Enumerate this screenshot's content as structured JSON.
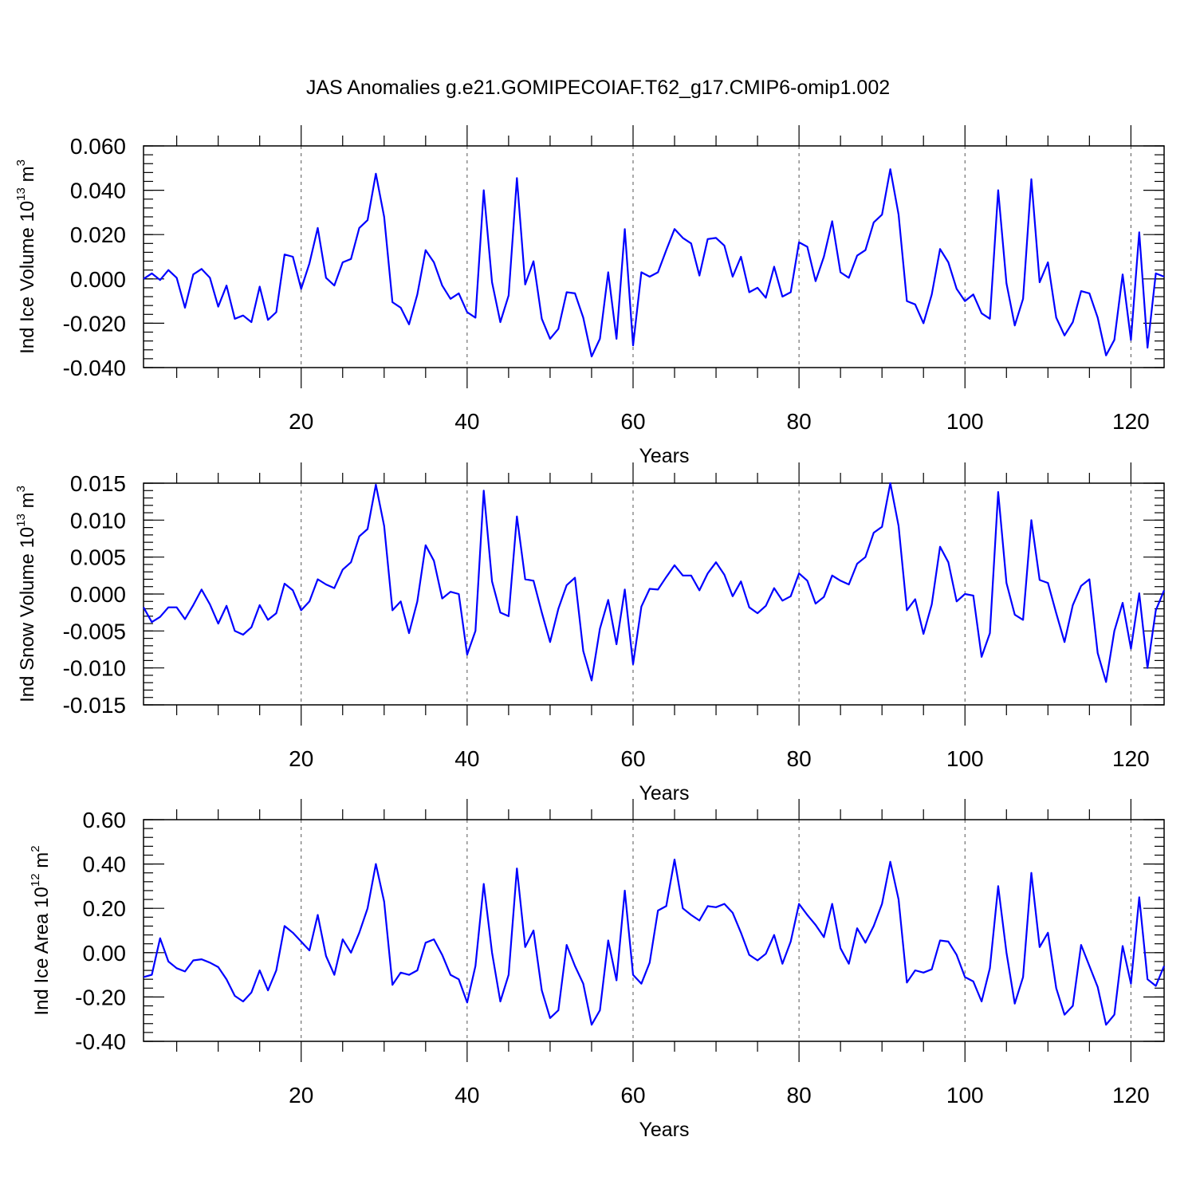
{
  "title": "JAS Anomalies g.e21.GOMIPECOIAF.T62_g17.CMIP6-omip1.002",
  "chart_data": [
    {
      "type": "line",
      "ylabel_main": "Ind Ice Volume 10",
      "ylabel_sup": "13",
      "ylabel_unit": " m",
      "ylabel_unit_sup": "3",
      "xlabel": "Years",
      "xlim": [
        1,
        124
      ],
      "ylim": [
        -0.04,
        0.06
      ],
      "yticks": [
        -0.04,
        -0.02,
        0.0,
        0.02,
        0.04,
        0.06
      ],
      "yticklabels": [
        "-0.040",
        "-0.020",
        "0.000",
        "0.020",
        "0.040",
        "0.060"
      ],
      "xticks": [
        20,
        40,
        60,
        80,
        100,
        120
      ],
      "xticklabels": [
        "20",
        "40",
        "60",
        "80",
        "100",
        "120"
      ],
      "grid": "vertical dashed at x ticks",
      "series": [
        {
          "color": "#0000ff",
          "values": [
            0.0,
            0.0025,
            -0.0005,
            0.004,
            0.0005,
            -0.013,
            0.002,
            0.0045,
            0.0005,
            -0.0125,
            -0.003,
            -0.018,
            -0.0165,
            -0.0195,
            -0.0035,
            -0.0185,
            -0.015,
            0.011,
            0.01,
            -0.0045,
            0.007,
            0.023,
            0.0005,
            -0.003,
            0.0075,
            0.009,
            0.023,
            0.0265,
            0.0475,
            0.028,
            -0.0105,
            -0.013,
            -0.0205,
            -0.007,
            0.013,
            0.0075,
            -0.003,
            -0.009,
            -0.0065,
            -0.015,
            -0.0175,
            0.04,
            -0.0015,
            -0.0195,
            -0.0075,
            0.0455,
            -0.0025,
            0.008,
            -0.018,
            -0.027,
            -0.0225,
            -0.006,
            -0.0065,
            -0.0175,
            -0.035,
            -0.027,
            0.003,
            -0.027,
            0.0225,
            -0.03,
            0.003,
            0.001,
            0.003,
            0.013,
            0.0225,
            0.0185,
            0.016,
            0.0015,
            0.018,
            0.0185,
            0.015,
            0.001,
            0.01,
            -0.006,
            -0.004,
            -0.0085,
            0.0055,
            -0.008,
            -0.006,
            0.0165,
            0.0145,
            -0.001,
            0.01,
            0.026,
            0.003,
            0.0005,
            0.0105,
            0.013,
            0.0255,
            0.029,
            0.0495,
            0.029,
            -0.01,
            -0.0115,
            -0.02,
            -0.007,
            0.0135,
            0.0075,
            -0.0045,
            -0.01,
            -0.007,
            -0.0155,
            -0.018,
            0.04,
            -0.002,
            -0.021,
            -0.009,
            0.045,
            -0.0015,
            0.0075,
            -0.0175,
            -0.0255,
            -0.0195,
            -0.0055,
            -0.0065,
            -0.0175,
            -0.0345,
            -0.0275,
            0.002,
            -0.0275,
            0.021,
            -0.031,
            0.0025,
            0.001
          ]
        }
      ]
    },
    {
      "type": "line",
      "ylabel_main": "Ind Snow Volume 10",
      "ylabel_sup": "13",
      "ylabel_unit": " m",
      "ylabel_unit_sup": "3",
      "xlabel": "Years",
      "xlim": [
        1,
        124
      ],
      "ylim": [
        -0.015,
        0.015
      ],
      "yticks": [
        -0.015,
        -0.01,
        -0.005,
        0.0,
        0.005,
        0.01,
        0.015
      ],
      "yticklabels": [
        "-0.015",
        "-0.010",
        "-0.005",
        "0.000",
        "0.005",
        "0.010",
        "0.015"
      ],
      "xticks": [
        20,
        40,
        60,
        80,
        100,
        120
      ],
      "xticklabels": [
        "20",
        "40",
        "60",
        "80",
        "100",
        "120"
      ],
      "grid": "vertical dashed at x ticks",
      "series": [
        {
          "color": "#0000ff",
          "values": [
            -0.0018,
            -0.0038,
            -0.0031,
            -0.0018,
            -0.0018,
            -0.0034,
            -0.0015,
            0.0006,
            -0.0014,
            -0.004,
            -0.0016,
            -0.005,
            -0.0055,
            -0.0045,
            -0.0015,
            -0.0035,
            -0.0026,
            0.0014,
            0.0005,
            -0.0022,
            -0.001,
            0.002,
            0.0013,
            0.0008,
            0.0033,
            0.0043,
            0.0078,
            0.0088,
            0.0148,
            0.0092,
            -0.0022,
            -0.001,
            -0.0053,
            -0.001,
            0.0066,
            0.0045,
            -0.0006,
            0.0003,
            0.0,
            -0.0082,
            -0.005,
            0.014,
            0.0017,
            -0.0025,
            -0.003,
            0.0105,
            0.002,
            0.0018,
            -0.0025,
            -0.0065,
            -0.002,
            0.0012,
            0.0022,
            -0.0077,
            -0.0117,
            -0.0047,
            -0.0008,
            -0.0068,
            0.0006,
            -0.0095,
            -0.0017,
            0.0007,
            0.0006,
            0.0023,
            0.0039,
            0.0025,
            0.0025,
            0.0005,
            0.0028,
            0.0043,
            0.0026,
            -0.0003,
            0.0017,
            -0.0018,
            -0.0026,
            -0.0016,
            0.0008,
            -0.0009,
            -0.0003,
            0.0028,
            0.0018,
            -0.0013,
            -0.0004,
            0.0025,
            0.0018,
            0.0013,
            0.0041,
            0.005,
            0.0083,
            0.0091,
            0.015,
            0.0092,
            -0.0022,
            -0.0007,
            -0.0054,
            -0.0014,
            0.0064,
            0.0043,
            -0.001,
            0.0,
            -0.0002,
            -0.0085,
            -0.0053,
            0.0138,
            0.0015,
            -0.0028,
            -0.0035,
            0.01,
            0.0019,
            0.0015,
            -0.0026,
            -0.0065,
            -0.0015,
            0.0011,
            0.002,
            -0.008,
            -0.0119,
            -0.005,
            -0.0012,
            -0.0074,
            0.0001,
            -0.01,
            -0.0022,
            0.0005
          ]
        }
      ]
    },
    {
      "type": "line",
      "ylabel_main": "Ind Ice Area 10",
      "ylabel_sup": "12",
      "ylabel_unit": " m",
      "ylabel_unit_sup": "2",
      "xlabel": "Years",
      "xlim": [
        1,
        124
      ],
      "ylim": [
        -0.4,
        0.6
      ],
      "yticks": [
        -0.4,
        -0.2,
        0.0,
        0.2,
        0.4,
        0.6
      ],
      "yticklabels": [
        "-0.40",
        "-0.20",
        "0.00",
        "0.20",
        "0.40",
        "0.60"
      ],
      "xticks": [
        20,
        40,
        60,
        80,
        100,
        120
      ],
      "xticklabels": [
        "20",
        "40",
        "60",
        "80",
        "100",
        "120"
      ],
      "grid": "vertical dashed at x ticks",
      "series": [
        {
          "color": "#0000ff",
          "values": [
            -0.11,
            -0.1,
            0.065,
            -0.04,
            -0.07,
            -0.085,
            -0.035,
            -0.03,
            -0.045,
            -0.065,
            -0.12,
            -0.195,
            -0.22,
            -0.18,
            -0.08,
            -0.17,
            -0.08,
            0.12,
            0.09,
            0.05,
            0.01,
            0.17,
            -0.015,
            -0.1,
            0.06,
            0.0,
            0.09,
            0.2,
            0.4,
            0.23,
            -0.145,
            -0.09,
            -0.1,
            -0.08,
            0.045,
            0.06,
            -0.01,
            -0.1,
            -0.12,
            -0.225,
            -0.06,
            0.31,
            0.0,
            -0.22,
            -0.1,
            0.38,
            0.025,
            0.1,
            -0.17,
            -0.295,
            -0.26,
            0.035,
            -0.06,
            -0.14,
            -0.325,
            -0.26,
            0.055,
            -0.125,
            0.28,
            -0.1,
            -0.14,
            -0.045,
            0.19,
            0.21,
            0.42,
            0.2,
            0.17,
            0.145,
            0.21,
            0.205,
            0.22,
            0.18,
            0.09,
            -0.01,
            -0.035,
            -0.005,
            0.08,
            -0.05,
            0.05,
            0.22,
            0.17,
            0.125,
            0.07,
            0.22,
            0.02,
            -0.05,
            0.11,
            0.045,
            0.12,
            0.22,
            0.41,
            0.24,
            -0.135,
            -0.08,
            -0.09,
            -0.075,
            0.055,
            0.05,
            -0.01,
            -0.11,
            -0.13,
            -0.22,
            -0.07,
            0.3,
            0.0,
            -0.23,
            -0.11,
            0.36,
            0.025,
            0.09,
            -0.16,
            -0.28,
            -0.24,
            0.035,
            -0.06,
            -0.155,
            -0.325,
            -0.28,
            0.03,
            -0.14,
            0.25,
            -0.12,
            -0.15,
            -0.06
          ]
        }
      ]
    }
  ]
}
